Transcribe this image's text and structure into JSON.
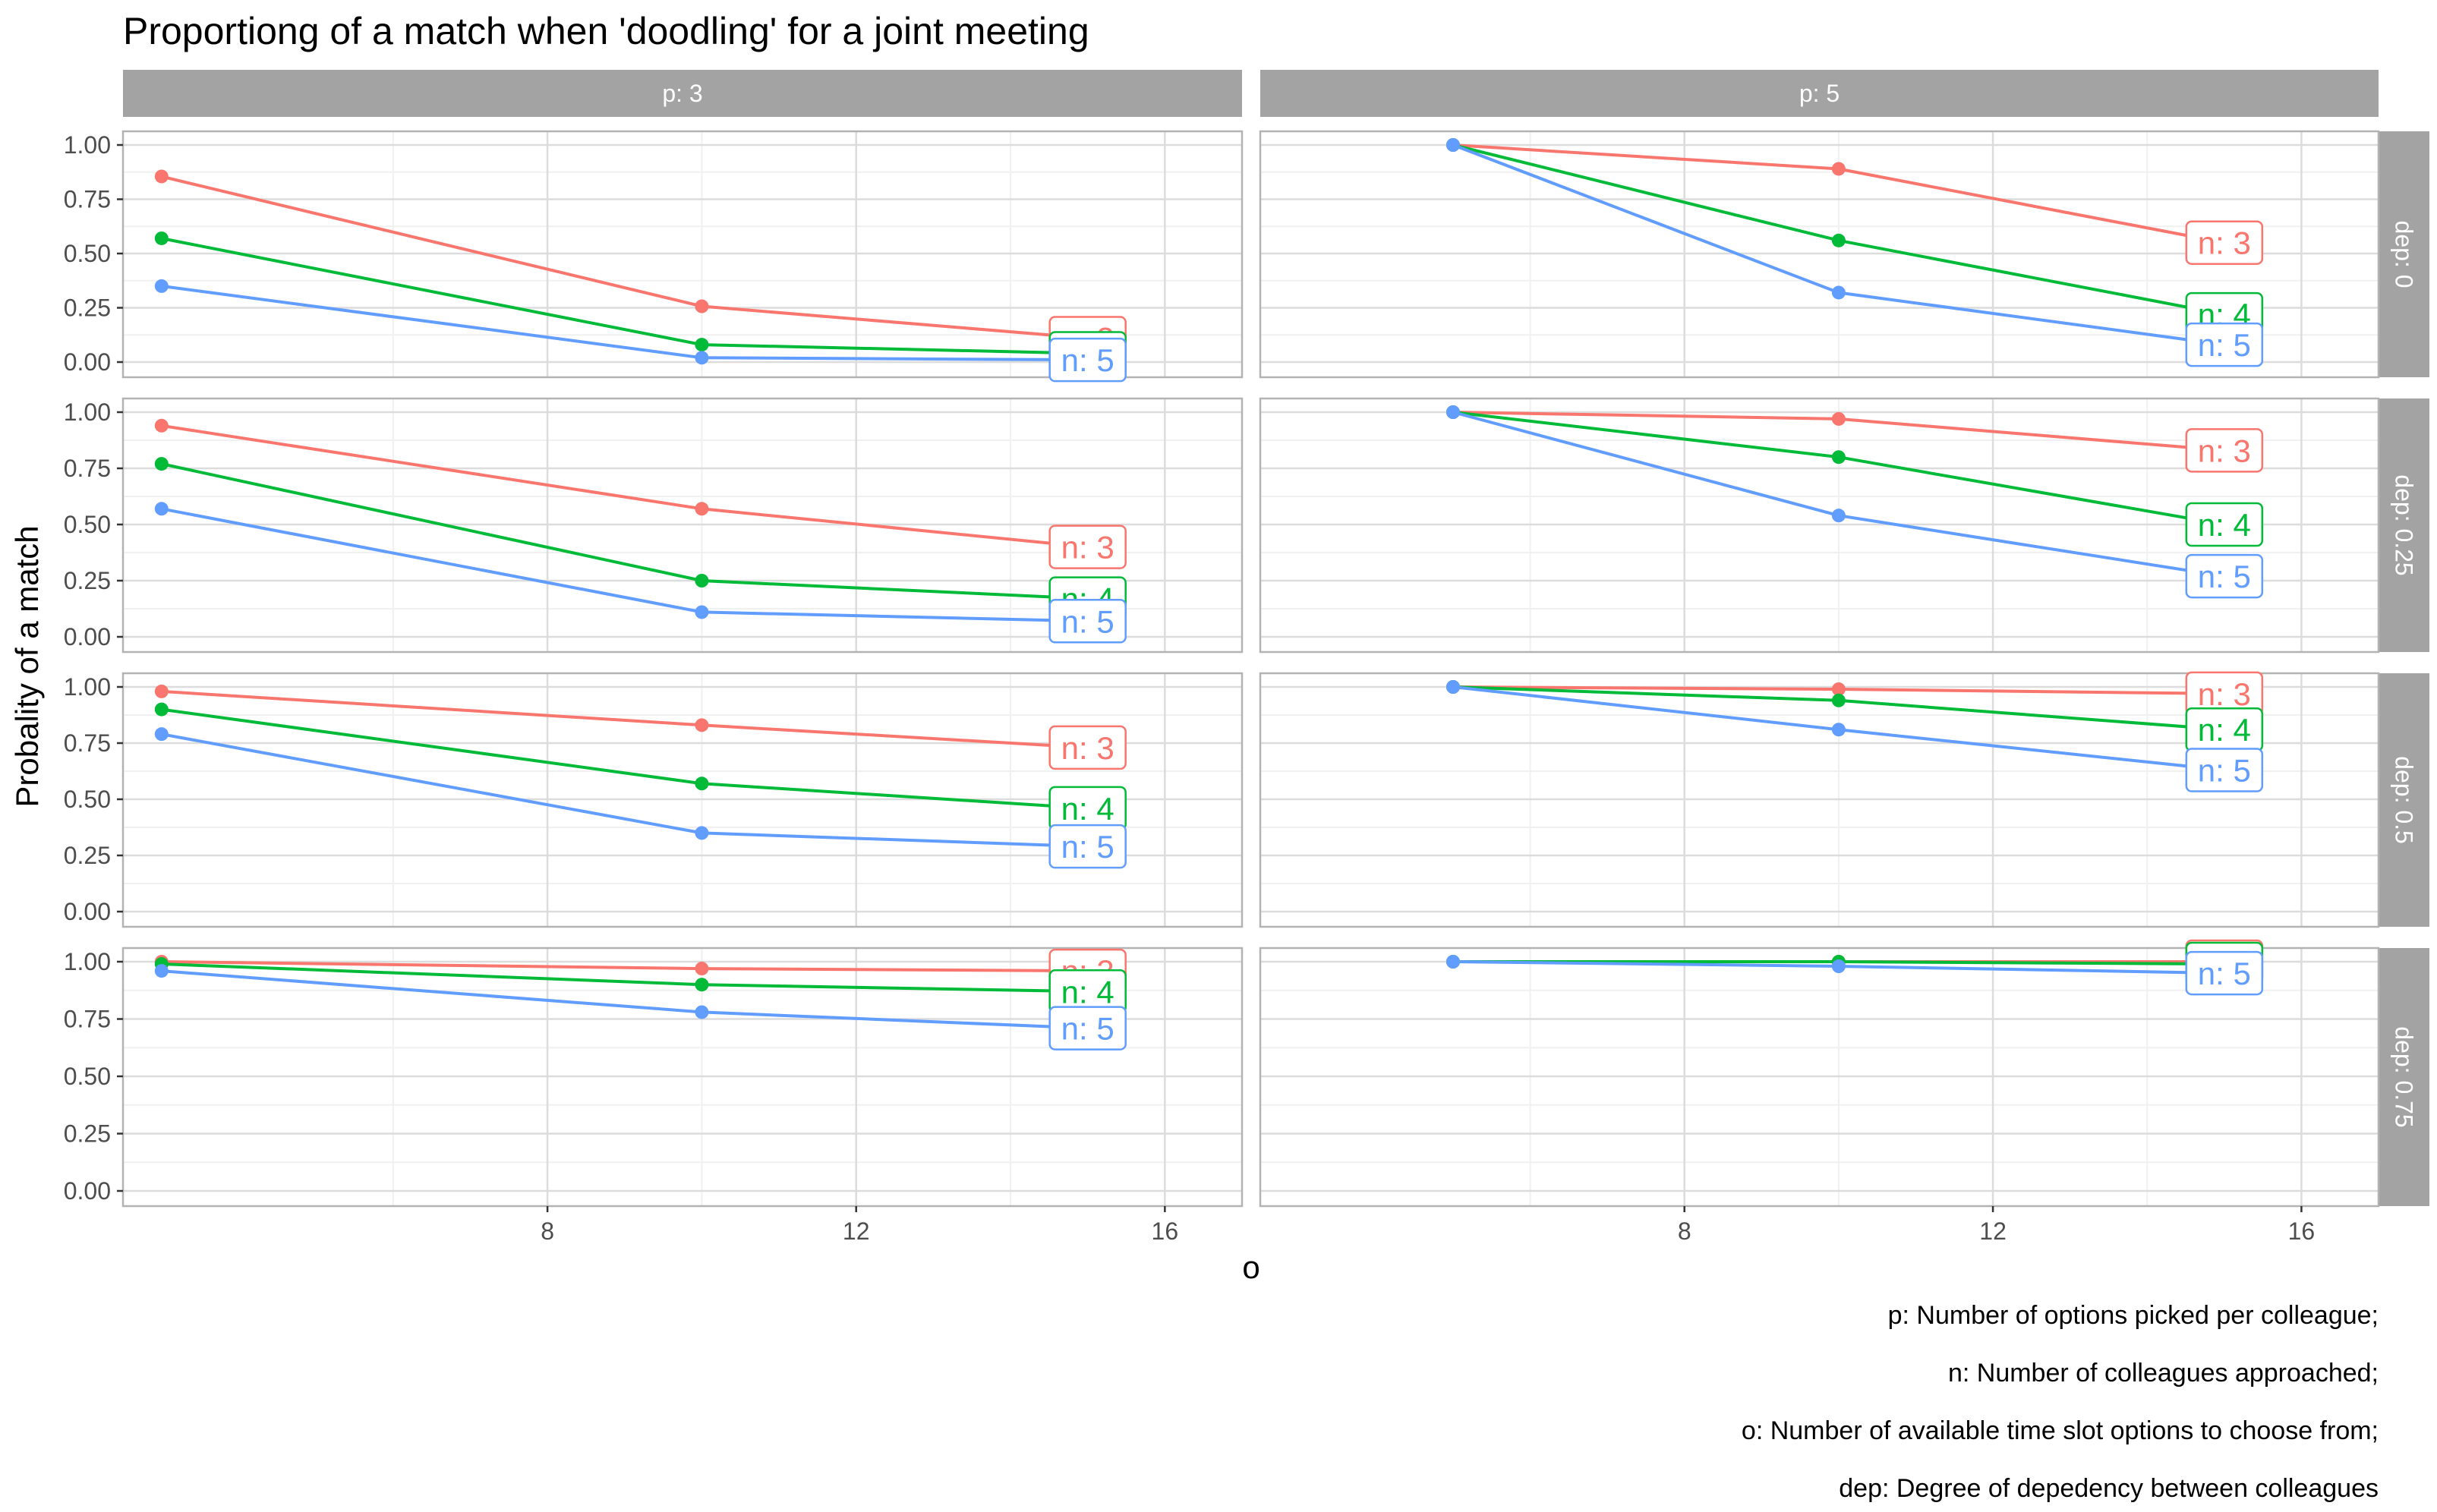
{
  "chart_data": {
    "type": "line",
    "title": "Proportiong of a match when 'doodling' for a joint meeting",
    "xlabel": "o",
    "ylabel": "Probality of a match",
    "xlim": [
      2.5,
      17
    ],
    "ylim": [
      0,
      1
    ],
    "x_ticks": [
      8,
      12,
      16
    ],
    "y_ticks": [
      0,
      0.25,
      0.5,
      0.75,
      1
    ],
    "y_tick_labels": [
      "0.00",
      "0.25",
      "0.50",
      "0.75",
      "1.00"
    ],
    "grid": true,
    "facet_cols": [
      "p: 3",
      "p: 5"
    ],
    "facet_rows": [
      "dep: 0",
      "dep: 0.25",
      "dep: 0.5",
      "dep: 0.75"
    ],
    "series_colors": {
      "n: 3": "#F8766D",
      "n: 4": "#00BA38",
      "n: 5": "#619CFF"
    },
    "caption": [
      "p: Number of options picked per colleague;",
      "n: Number of colleagues approached;",
      "o: Number of available time slot options to choose from;",
      "dep: Degree of depedency between colleagues"
    ],
    "panels": [
      {
        "col": "p: 3",
        "row": "dep: 0",
        "x": [
          3,
          10,
          15
        ],
        "series": [
          {
            "name": "n: 3",
            "values": [
              0.855,
              0.257,
              0.11
            ]
          },
          {
            "name": "n: 4",
            "values": [
              0.57,
              0.08,
              0.04
            ]
          },
          {
            "name": "n: 5",
            "values": [
              0.35,
              0.02,
              0.01
            ]
          }
        ]
      },
      {
        "col": "p: 5",
        "row": "dep: 0",
        "x": [
          5,
          10,
          15
        ],
        "series": [
          {
            "name": "n: 3",
            "values": [
              1.0,
              0.89,
              0.55
            ]
          },
          {
            "name": "n: 4",
            "values": [
              1.0,
              0.56,
              0.22
            ]
          },
          {
            "name": "n: 5",
            "values": [
              1.0,
              0.32,
              0.08
            ]
          }
        ]
      },
      {
        "col": "p: 3",
        "row": "dep: 0.25",
        "x": [
          3,
          10,
          15
        ],
        "series": [
          {
            "name": "n: 3",
            "values": [
              0.94,
              0.57,
              0.4
            ]
          },
          {
            "name": "n: 4",
            "values": [
              0.77,
              0.25,
              0.17
            ]
          },
          {
            "name": "n: 5",
            "values": [
              0.57,
              0.11,
              0.07
            ]
          }
        ]
      },
      {
        "col": "p: 5",
        "row": "dep: 0.25",
        "x": [
          5,
          10,
          15
        ],
        "series": [
          {
            "name": "n: 3",
            "values": [
              1.0,
              0.97,
              0.83
            ]
          },
          {
            "name": "n: 4",
            "values": [
              1.0,
              0.8,
              0.5
            ]
          },
          {
            "name": "n: 5",
            "values": [
              1.0,
              0.54,
              0.27
            ]
          }
        ]
      },
      {
        "col": "p: 3",
        "row": "dep: 0.5",
        "x": [
          3,
          10,
          15
        ],
        "series": [
          {
            "name": "n: 3",
            "values": [
              0.98,
              0.83,
              0.73
            ]
          },
          {
            "name": "n: 4",
            "values": [
              0.9,
              0.57,
              0.46
            ]
          },
          {
            "name": "n: 5",
            "values": [
              0.79,
              0.35,
              0.29
            ]
          }
        ]
      },
      {
        "col": "p: 5",
        "row": "dep: 0.5",
        "x": [
          5,
          10,
          15
        ],
        "series": [
          {
            "name": "n: 3",
            "values": [
              1.0,
              0.99,
              0.97
            ]
          },
          {
            "name": "n: 4",
            "values": [
              1.0,
              0.94,
              0.81
            ]
          },
          {
            "name": "n: 5",
            "values": [
              1.0,
              0.81,
              0.63
            ]
          }
        ]
      },
      {
        "col": "p: 3",
        "row": "dep: 0.75",
        "x": [
          3,
          10,
          15
        ],
        "series": [
          {
            "name": "n: 3",
            "values": [
              1.0,
              0.97,
              0.96
            ]
          },
          {
            "name": "n: 4",
            "values": [
              0.99,
              0.9,
              0.87
            ]
          },
          {
            "name": "n: 5",
            "values": [
              0.96,
              0.78,
              0.71
            ]
          }
        ]
      },
      {
        "col": "p: 5",
        "row": "dep: 0.75",
        "x": [
          5,
          10,
          15
        ],
        "series": [
          {
            "name": "n: 3",
            "values": [
              1.0,
              1.0,
              1.0
            ]
          },
          {
            "name": "n: 4",
            "values": [
              1.0,
              1.0,
              0.99
            ]
          },
          {
            "name": "n: 5",
            "values": [
              1.0,
              0.98,
              0.95
            ]
          }
        ]
      }
    ]
  }
}
